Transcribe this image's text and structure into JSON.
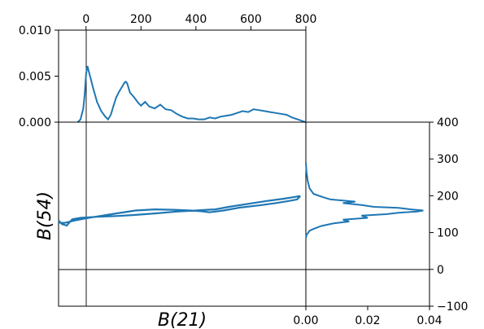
{
  "chart_data": [
    {
      "panel": "top-marginal",
      "type": "line",
      "x_ticks": [
        "0",
        "200",
        "400",
        "800",
        "600"
      ],
      "x_tick_values": [
        0,
        200,
        400,
        800,
        600
      ],
      "y_ticks": [
        "0.000",
        "0.005",
        "0.010"
      ],
      "y_tick_values": [
        0,
        0.005,
        0.01
      ],
      "xlim": [
        -100,
        800
      ],
      "ylim": [
        0,
        0.01
      ],
      "series_color": "#1f77b4",
      "x": [
        -30,
        -20,
        -10,
        -5,
        0,
        5,
        10,
        18,
        25,
        40,
        55,
        70,
        80,
        90,
        100,
        110,
        120,
        130,
        140,
        145,
        150,
        160,
        175,
        190,
        200,
        215,
        230,
        250,
        270,
        290,
        310,
        330,
        350,
        370,
        390,
        410,
        430,
        450,
        470,
        490,
        510,
        530,
        550,
        570,
        590,
        610,
        630,
        650,
        670,
        690,
        710,
        730,
        750,
        770,
        790,
        800
      ],
      "y": [
        0.0,
        0.0003,
        0.0015,
        0.003,
        0.0052,
        0.0061,
        0.0055,
        0.0046,
        0.0038,
        0.0022,
        0.0012,
        0.0006,
        0.0003,
        0.0008,
        0.0018,
        0.0027,
        0.0033,
        0.0038,
        0.0043,
        0.0044,
        0.0042,
        0.0032,
        0.0027,
        0.0021,
        0.0018,
        0.0022,
        0.0017,
        0.0015,
        0.0019,
        0.0014,
        0.0013,
        0.0009,
        0.0006,
        0.0004,
        0.0004,
        0.0003,
        0.0003,
        0.0005,
        0.0004,
        0.0006,
        0.0007,
        0.0008,
        0.001,
        0.0012,
        0.0011,
        0.0014,
        0.0013,
        0.0012,
        0.0011,
        0.001,
        0.0009,
        0.0008,
        0.0005,
        0.0003,
        0.0001,
        0.0
      ]
    },
    {
      "panel": "main",
      "type": "line",
      "xlabel": "B(21)",
      "ylabel": "B(54)",
      "xlim": [
        -100,
        800
      ],
      "ylim": [
        -100,
        400
      ],
      "reference_lines": {
        "x": 0,
        "y": 0
      },
      "series_color": "#1f77b4",
      "x": [
        780,
        768,
        740,
        690,
        630,
        560,
        500,
        450,
        420,
        380,
        320,
        250,
        180,
        110,
        50,
        0,
        -40,
        -80,
        -95,
        -100,
        -88,
        -70,
        -60,
        -50,
        -20,
        40,
        110,
        180,
        250,
        330,
        400,
        440,
        470,
        520,
        590,
        660,
        720,
        760,
        775,
        780
      ],
      "y": [
        199,
        190,
        186,
        180,
        174,
        168,
        160,
        155,
        158,
        160,
        162,
        163,
        160,
        152,
        145,
        139,
        133,
        126,
        127,
        133,
        123,
        119,
        128,
        136,
        140,
        143,
        145,
        148,
        152,
        157,
        160,
        162,
        163,
        170,
        178,
        186,
        192,
        197,
        199,
        199
      ]
    },
    {
      "panel": "right-marginal",
      "type": "line",
      "x_ticks": [
        "0.00",
        "0.02",
        "0.04"
      ],
      "x_tick_values": [
        0,
        0.02,
        0.04
      ],
      "y_ticks": [
        "−100",
        "0",
        "100",
        "200",
        "300",
        "400"
      ],
      "y_tick_values": [
        -100,
        0,
        100,
        200,
        300,
        400
      ],
      "xlim": [
        0,
        0.04
      ],
      "ylim": [
        -100,
        400
      ],
      "series_color": "#1f77b4",
      "x": [
        0.0,
        0.0003,
        0.0008,
        0.0012,
        0.0025,
        0.005,
        0.009,
        0.014,
        0.012,
        0.02,
        0.018,
        0.026,
        0.03,
        0.036,
        0.038,
        0.034,
        0.03,
        0.022,
        0.018,
        0.012,
        0.016,
        0.008,
        0.006,
        0.0025,
        0.0012,
        0.0006,
        0.0002,
        0.0
      ],
      "y": [
        85,
        95,
        100,
        105,
        110,
        118,
        125,
        130,
        135,
        140,
        146,
        150,
        154,
        157,
        160,
        163,
        167,
        170,
        175,
        180,
        184,
        190,
        195,
        205,
        220,
        240,
        265,
        290
      ]
    }
  ]
}
